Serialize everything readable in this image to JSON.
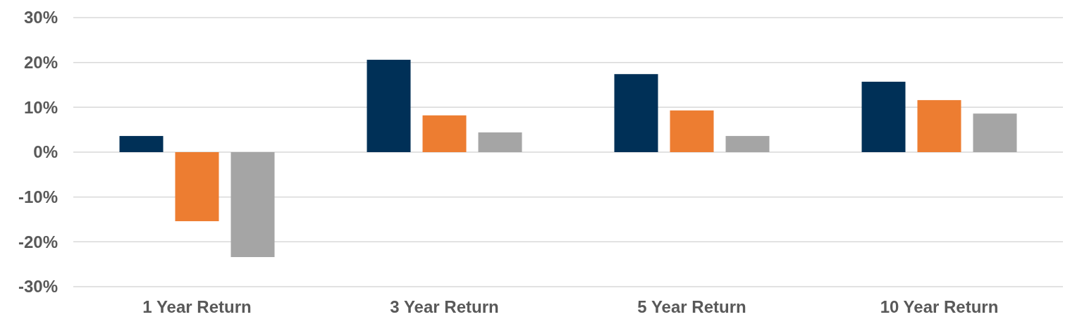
{
  "chart_data": {
    "type": "bar",
    "categories": [
      "1 Year Return",
      "3 Year Return",
      "5 Year Return",
      "10 Year Return"
    ],
    "series": [
      {
        "color": "#003057",
        "values": [
          3.6,
          20.6,
          17.4,
          15.7
        ]
      },
      {
        "color": "#ed7d31",
        "values": [
          -15.4,
          8.2,
          9.3,
          11.6
        ]
      },
      {
        "color": "#a5a5a5",
        "values": [
          -23.4,
          4.4,
          3.6,
          8.6
        ]
      }
    ],
    "ylim": [
      -30,
      30
    ],
    "yticks": [
      {
        "value": -30,
        "label": "-30%"
      },
      {
        "value": -20,
        "label": "-20%"
      },
      {
        "value": -10,
        "label": "-10%"
      },
      {
        "value": 0,
        "label": "0%"
      },
      {
        "value": 10,
        "label": "10%"
      },
      {
        "value": 20,
        "label": "20%"
      },
      {
        "value": 30,
        "label": "30%"
      }
    ],
    "grid": "y"
  }
}
